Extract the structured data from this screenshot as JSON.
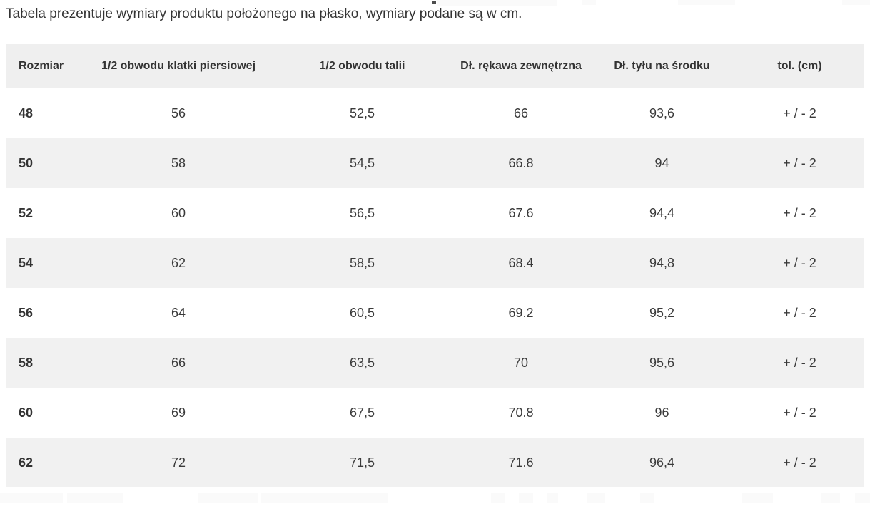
{
  "page": {
    "intro": "Tabela prezentuje wymiary produktu położonego na płasko, wymiary podane są w cm."
  },
  "size_table": {
    "columns": [
      "Rozmiar",
      "1/2 obwodu klatki piersiowej",
      "1/2 obwodu talii",
      "Dł. rękawa zewnętrzna",
      "Dł. tyłu na środku",
      "tol. (cm)"
    ],
    "rows": [
      [
        "48",
        "56",
        "52,5",
        "66",
        "93,6",
        "+ / - 2"
      ],
      [
        "50",
        "58",
        "54,5",
        "66.8",
        "94",
        "+ / - 2"
      ],
      [
        "52",
        "60",
        "56,5",
        "67.6",
        "94,4",
        "+ / - 2"
      ],
      [
        "54",
        "62",
        "58,5",
        "68.4",
        "94,8",
        "+ / - 2"
      ],
      [
        "56",
        "64",
        "60,5",
        "69.2",
        "95,2",
        "+ / - 2"
      ],
      [
        "58",
        "66",
        "63,5",
        "70",
        "95,6",
        "+ / - 2"
      ],
      [
        "60",
        "69",
        "67,5",
        "70.8",
        "96",
        "+ / - 2"
      ],
      [
        "62",
        "72",
        "71,5",
        "71.6",
        "96,4",
        "+ / - 2"
      ]
    ]
  },
  "colors": {
    "header_background": "#efefef",
    "row_stripe_background": "#f1f1f1",
    "row_background": "#ffffff",
    "text": "#333333",
    "page_background": "#ffffff"
  }
}
